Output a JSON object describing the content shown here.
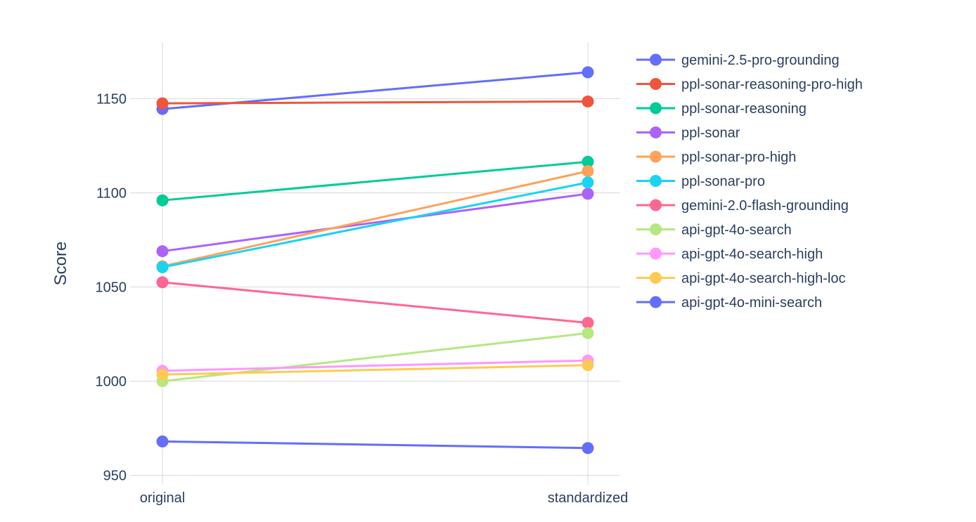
{
  "chart_data": {
    "type": "line",
    "title": "",
    "xlabel": "",
    "ylabel": "Score",
    "categories": [
      "original",
      "standardized"
    ],
    "ylim": [
      945,
      1180
    ],
    "yticks": [
      950,
      1000,
      1050,
      1100,
      1150
    ],
    "grid": true,
    "legend_position": "right",
    "series": [
      {
        "name": "gemini-2.5-pro-grounding",
        "values": [
          1144.5,
          1164
        ],
        "color": "#636efa"
      },
      {
        "name": "ppl-sonar-reasoning-pro-high",
        "values": [
          1147.5,
          1148.5
        ],
        "color": "#ef553b"
      },
      {
        "name": "ppl-sonar-reasoning",
        "values": [
          1096,
          1116.5
        ],
        "color": "#00cc96"
      },
      {
        "name": "ppl-sonar",
        "values": [
          1069,
          1099.5
        ],
        "color": "#ab63fa"
      },
      {
        "name": "ppl-sonar-pro-high",
        "values": [
          1061,
          1111.5
        ],
        "color": "#ffa15a"
      },
      {
        "name": "ppl-sonar-pro",
        "values": [
          1060.5,
          1105.5
        ],
        "color": "#19d3f3"
      },
      {
        "name": "gemini-2.0-flash-grounding",
        "values": [
          1052.5,
          1031
        ],
        "color": "#ff6692"
      },
      {
        "name": "api-gpt-4o-search",
        "values": [
          1000,
          1025.5
        ],
        "color": "#b6e880"
      },
      {
        "name": "api-gpt-4o-search-high",
        "values": [
          1005.5,
          1011
        ],
        "color": "#ff97ff"
      },
      {
        "name": "api-gpt-4o-search-high-loc",
        "values": [
          1003.5,
          1008.5
        ],
        "color": "#fecb52"
      },
      {
        "name": "api-gpt-4o-mini-search",
        "values": [
          968,
          964.5
        ],
        "color": "#636efa"
      }
    ]
  }
}
